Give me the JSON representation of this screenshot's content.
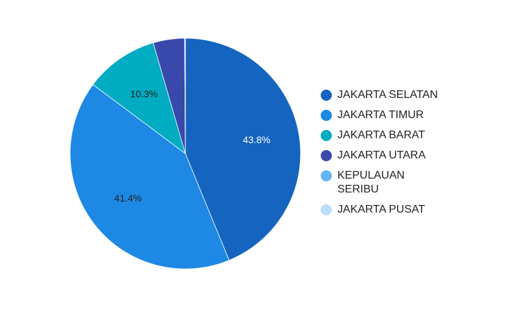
{
  "chart_data": {
    "type": "pie",
    "title": "",
    "start_angle_deg": 0,
    "direction": "clockwise",
    "legend_position": "right",
    "slices": [
      {
        "name": "JAKARTA SELATAN",
        "value": 43.8,
        "label": "43.8%",
        "color": "#1565C0",
        "label_color": "#ffffff"
      },
      {
        "name": "JAKARTA TIMUR",
        "value": 41.4,
        "label": "41.4%",
        "color": "#1E88E5",
        "label_color": "#222222"
      },
      {
        "name": "JAKARTA BARAT",
        "value": 10.3,
        "label": "10.3%",
        "color": "#00ACC1",
        "label_color": "#222222"
      },
      {
        "name": "JAKARTA UTARA",
        "value": 4.4,
        "label": "",
        "color": "#3949AB",
        "label_color": "#ffffff"
      },
      {
        "name": "KEPULAUAN SERIBU",
        "value": 0.05,
        "label": "",
        "color": "#64B5F6",
        "label_color": "#222222"
      },
      {
        "name": "JAKARTA PUSAT",
        "value": 0.05,
        "label": "",
        "color": "#BBDEFB",
        "label_color": "#222222"
      }
    ]
  }
}
